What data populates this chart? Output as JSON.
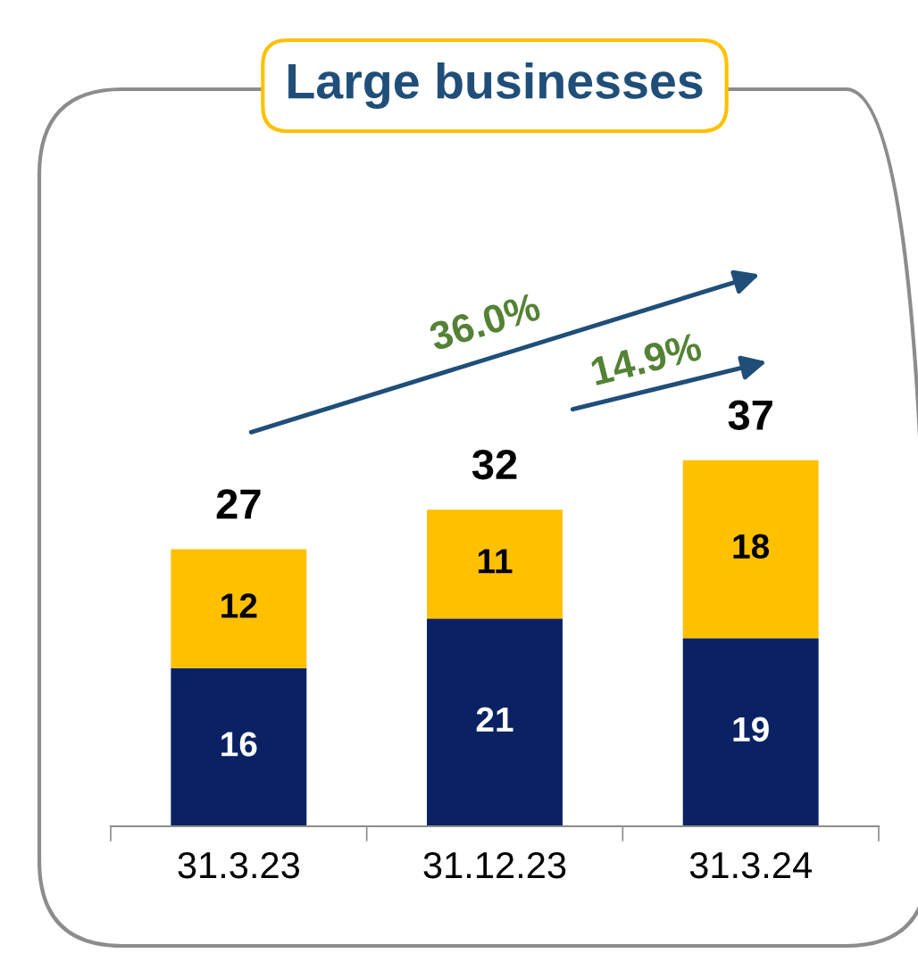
{
  "chart_data": {
    "type": "bar",
    "title": "Large businesses",
    "stacked": true,
    "data_labels": true,
    "categories": [
      "31.3.23",
      "31.12.23",
      "31.3.24"
    ],
    "series": [
      {
        "color": "#0a2263",
        "values": [
          16,
          21,
          19
        ]
      },
      {
        "color": "#ffc000",
        "values": [
          12,
          11,
          18
        ]
      }
    ],
    "totals": [
      "27",
      "32",
      "37"
    ],
    "annotations": [
      "36.0%",
      "14.9%"
    ]
  }
}
